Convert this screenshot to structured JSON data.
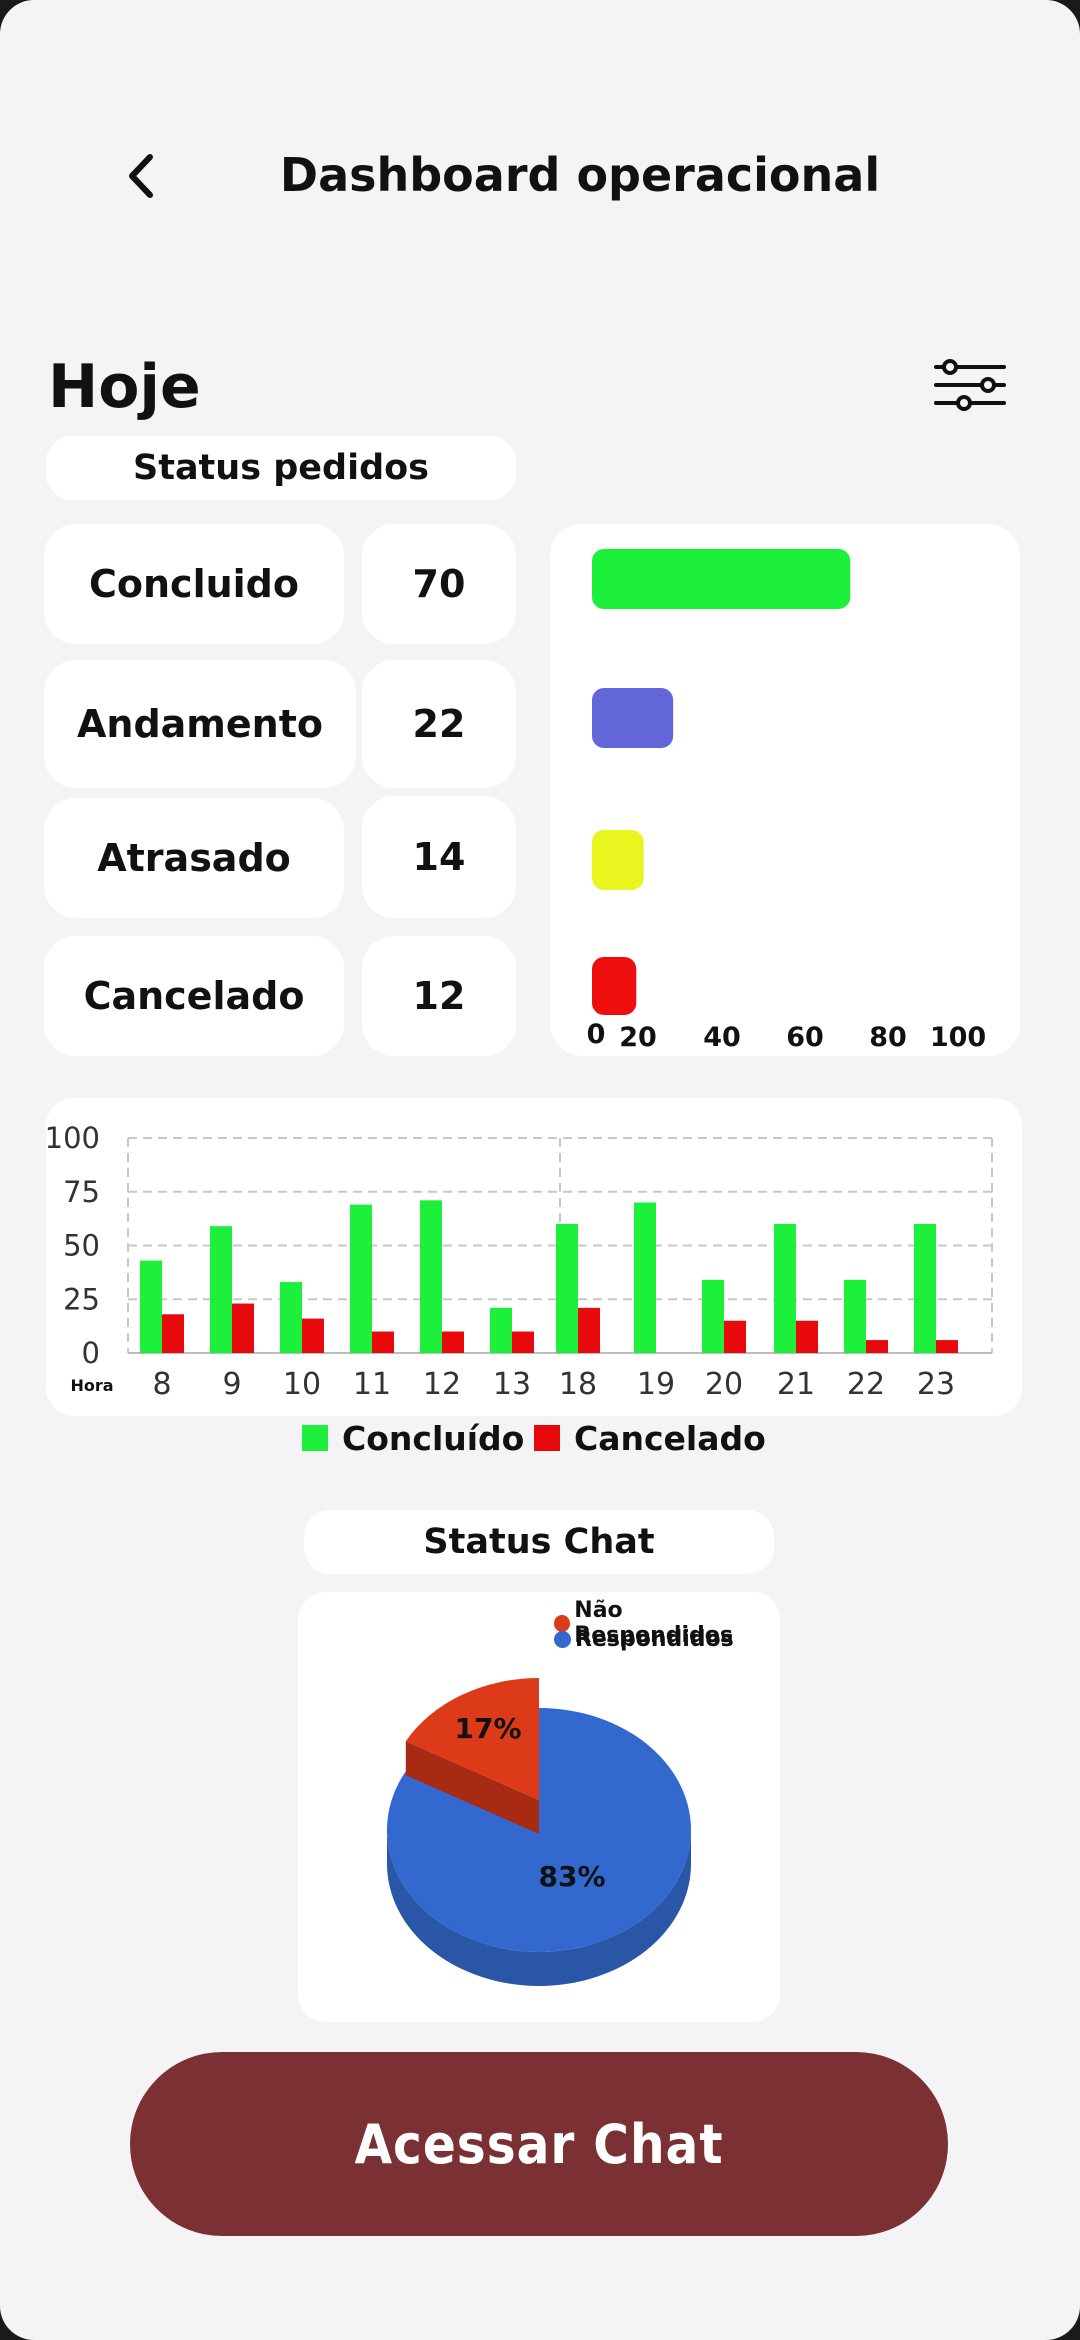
{
  "header": {
    "title": "Dashboard operacional",
    "back_icon": "chevron-left-icon"
  },
  "section": {
    "title": "Hoje",
    "filter_icon": "sliders-icon"
  },
  "status_pedidos": {
    "title": "Status pedidos",
    "items": [
      {
        "label": "Concluido",
        "value": "70",
        "color": "#1cf03a"
      },
      {
        "label": "Andamento",
        "value": "22",
        "color": "#6366d9"
      },
      {
        "label": "Atrasado",
        "value": "14",
        "color": "#e8f51e"
      },
      {
        "label": "Cancelado",
        "value": "12",
        "color": "#ef0e0e"
      }
    ]
  },
  "chart_data": [
    {
      "type": "bar",
      "orientation": "horizontal",
      "categories": [
        "Concluido",
        "Andamento",
        "Atrasado",
        "Cancelado"
      ],
      "values": [
        70,
        22,
        14,
        12
      ],
      "colors": [
        "#1cf03a",
        "#6366d9",
        "#e8f51e",
        "#ef0e0e"
      ],
      "x_ticks": [
        "0",
        "20",
        "40",
        "60",
        "80",
        "100"
      ],
      "xlim": [
        0,
        100
      ]
    },
    {
      "type": "bar",
      "xlabel": "Hora",
      "categories": [
        "8",
        "9",
        "10",
        "11",
        "12",
        "13",
        "18",
        "19",
        "20",
        "21",
        "22",
        "23"
      ],
      "series": [
        {
          "name": "Concluído",
          "color": "#1cf03a",
          "values": [
            43,
            59,
            33,
            69,
            71,
            21,
            60,
            70,
            34,
            60,
            34,
            60
          ]
        },
        {
          "name": "Cancelado",
          "color": "#e8090c",
          "values": [
            18,
            23,
            16,
            10,
            10,
            10,
            21,
            0,
            15,
            15,
            6,
            6
          ]
        }
      ],
      "y_ticks": [
        "0",
        "25",
        "50",
        "75",
        "100"
      ],
      "ylim": [
        0,
        100
      ],
      "grid": true,
      "legend": "bottom"
    },
    {
      "type": "pie",
      "title": "Status Chat",
      "slices": [
        {
          "name": "Não Respondidos",
          "value": 17,
          "label": "17%",
          "color": "#dc3a18"
        },
        {
          "name": "Respondidos",
          "value": 83,
          "label": "83%",
          "color": "#3369cf"
        }
      ],
      "legend": "top-right"
    }
  ],
  "chat_card": {
    "title": "Status Chat"
  },
  "actions": {
    "chat_button": "Acessar Chat"
  }
}
